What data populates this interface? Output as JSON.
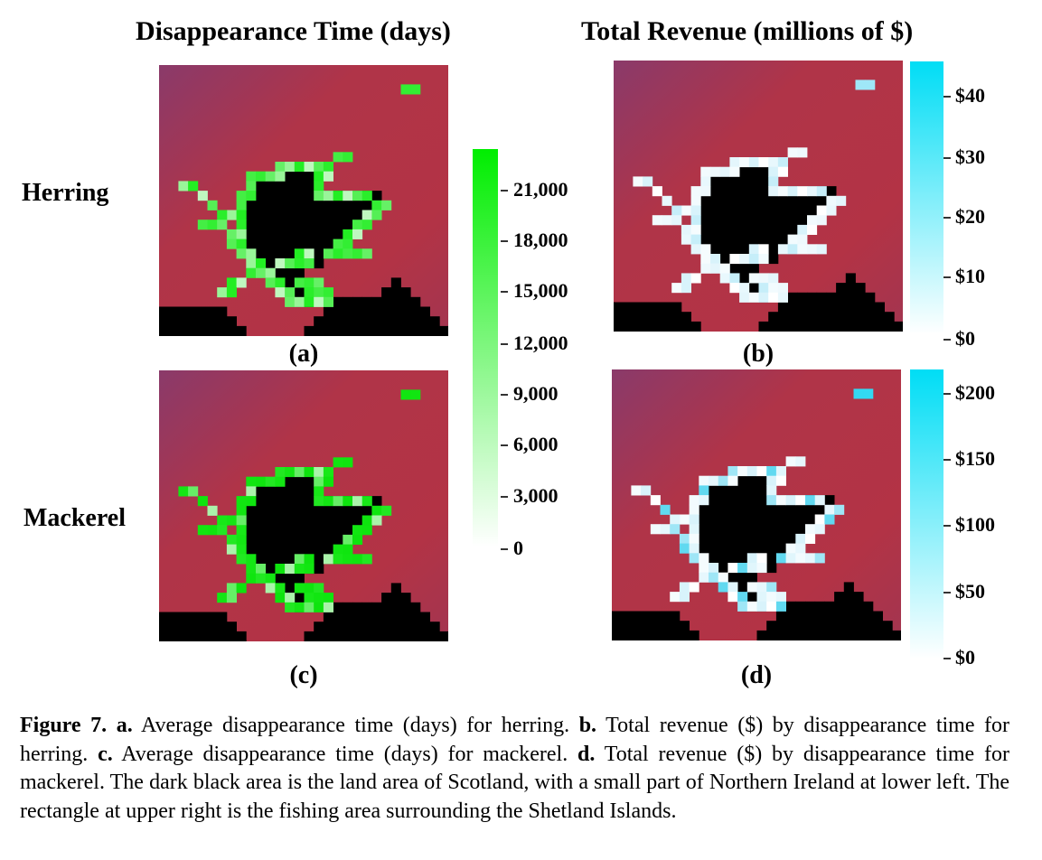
{
  "titles": {
    "left": "Disappearance Time (days)",
    "right": "Total Revenue (millions of $)"
  },
  "rows": {
    "herring": "Herring",
    "mackerel": "Mackerel"
  },
  "panels": {
    "a": "(a)",
    "b": "(b)",
    "c": "(c)",
    "d": "(d)"
  },
  "colorbars": {
    "time": {
      "ticks": [
        "21,000",
        "18,000",
        "15,000",
        "12,000",
        "9,000",
        "6,000",
        "3,000",
        "0"
      ],
      "color_low": "#ffffff",
      "color_high": "#00ee00"
    },
    "revenue_herring": {
      "ticks": [
        "$40",
        "$30",
        "$20",
        "$10",
        "$0"
      ],
      "color_low": "#ffffff",
      "color_high": "#00ddf5"
    },
    "revenue_mackerel": {
      "ticks": [
        "$200",
        "$150",
        "$100",
        "$50",
        "$0"
      ],
      "color_low": "#ffffff",
      "color_high": "#00ddf5"
    }
  },
  "colors": {
    "sea_top": "#8a3a6a",
    "sea_main": "#b03448",
    "land": "#000000",
    "green": "#22ee22",
    "cyan": "#33ddf0",
    "white": "#f2fbfe"
  },
  "caption": {
    "fig_label": "Figure 7.",
    "a_label": "a.",
    "a_text": " Average disappearance time (days) for herring. ",
    "b_label": "b.",
    "b_text": " Total revenue ($) by disappearance time for herring. ",
    "c_label": "c.",
    "c_text": " Average disappearance time (days) for mackerel. ",
    "d_label": "d.",
    "d_text": " Total revenue ($) by disappearance time for mackerel. The dark black area is the land area of Scotland, with a small part of Northern Ireland at lower left. The rectangle at upper right is the fishing area surrounding the Shetland Islands."
  }
}
